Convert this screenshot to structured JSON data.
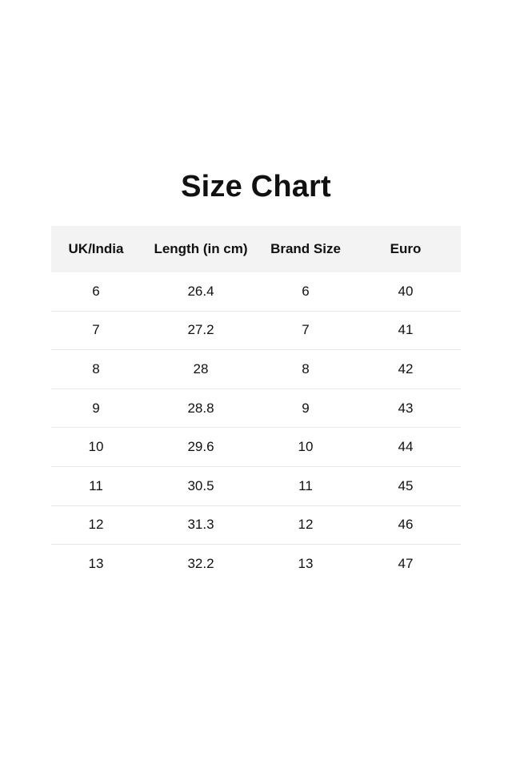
{
  "title": "Size Chart",
  "table": {
    "headers": [
      "UK/India",
      "Length (in cm)",
      "Brand Size",
      "Euro"
    ],
    "rows": [
      [
        "6",
        "26.4",
        "6",
        "40"
      ],
      [
        "7",
        "27.2",
        "7",
        "41"
      ],
      [
        "8",
        "28",
        "8",
        "42"
      ],
      [
        "9",
        "28.8",
        "9",
        "43"
      ],
      [
        "10",
        "29.6",
        "10",
        "44"
      ],
      [
        "11",
        "30.5",
        "11",
        "45"
      ],
      [
        "12",
        "31.3",
        "12",
        "46"
      ],
      [
        "13",
        "32.2",
        "13",
        "47"
      ]
    ]
  },
  "colors": {
    "header_bg": "#f3f3f3",
    "divider": "#e6e6e6",
    "text": "#111111"
  }
}
